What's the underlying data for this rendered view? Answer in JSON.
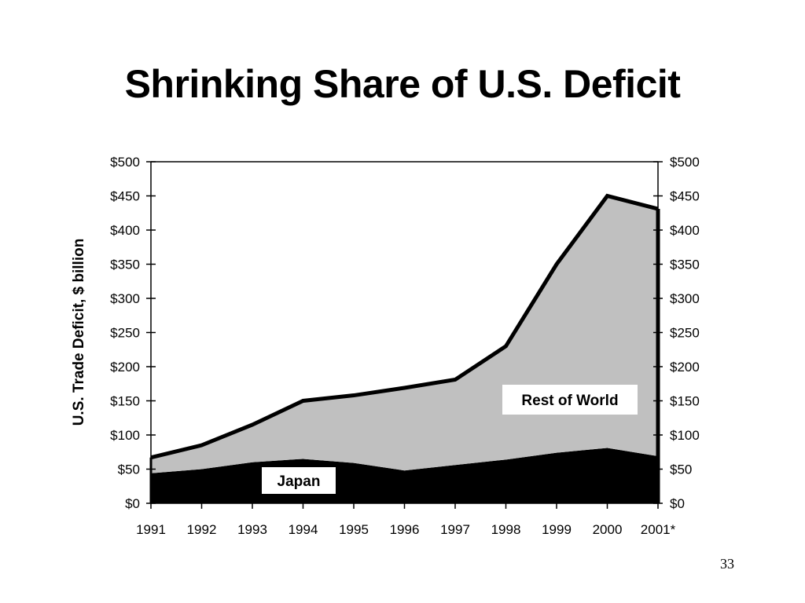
{
  "slide": {
    "title": "Shrinking Share of U.S. Deficit",
    "page_number": "33"
  },
  "chart_data": {
    "type": "area",
    "title": "",
    "xlabel": "",
    "ylabel": "U.S. Trade Deficit, $ billion",
    "categories": [
      "1991",
      "1992",
      "1993",
      "1994",
      "1995",
      "1996",
      "1997",
      "1998",
      "1999",
      "2000",
      "2001*"
    ],
    "stacked": true,
    "series": [
      {
        "name": "Japan",
        "values": [
          44,
          50,
          60,
          65,
          59,
          48,
          56,
          64,
          74,
          81,
          69
        ],
        "color": "#000000"
      },
      {
        "name": "Rest of World",
        "values": [
          23,
          35,
          55,
          85,
          99,
          121,
          125,
          166,
          276,
          369,
          362
        ],
        "color": "#c0c0c0"
      }
    ],
    "total_line_color": "#000000",
    "ylim": [
      0,
      500
    ],
    "y_ticks": [
      0,
      50,
      100,
      150,
      200,
      250,
      300,
      350,
      400,
      450,
      500
    ],
    "y_tick_labels": [
      "$0",
      "$50",
      "$100",
      "$150",
      "$200",
      "$250",
      "$300",
      "$350",
      "$400",
      "$450",
      "$500"
    ],
    "y_axis_both_sides": true,
    "grid": false,
    "legend": "in-plot labels"
  }
}
